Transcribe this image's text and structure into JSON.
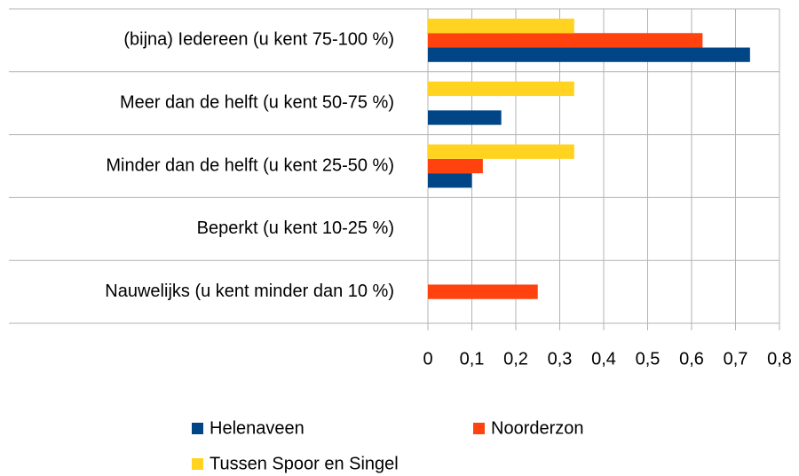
{
  "chart_data": {
    "type": "hbar",
    "categories": [
      "(bijna) Iedereen (u kent 75-100 %)",
      "Meer dan de helft (u kent 50-75 %)",
      "Minder dan de helft (u kent 25-50 %)",
      "Beperkt (u kent 10-25 %)",
      "Nauwelijks (u kent minder dan 10 %)"
    ],
    "series": [
      {
        "name": "Helenaveen",
        "color": "#004586",
        "values": [
          0.733,
          0.167,
          0.1,
          0,
          0
        ]
      },
      {
        "name": "Noorderzon",
        "color": "#ff420e",
        "values": [
          0.625,
          0,
          0.125,
          0,
          0.25
        ]
      },
      {
        "name": "Tussen Spoor en Singel",
        "color": "#ffd320",
        "values": [
          0.333,
          0.333,
          0.333,
          0,
          0
        ]
      }
    ],
    "xlim": [
      0,
      0.8
    ],
    "xticks": [
      0,
      {
        "value": 0.1,
        "label": "0,1"
      },
      {
        "value": 0.2,
        "label": "0,2"
      },
      {
        "value": 0.3,
        "label": "0,3"
      },
      {
        "value": 0.4,
        "label": "0,4"
      },
      {
        "value": 0.5,
        "label": "0,5"
      },
      {
        "value": 0.6,
        "label": "0,6"
      },
      {
        "value": 0.7,
        "label": "0,7"
      },
      {
        "value": 0.8,
        "label": "0,8"
      }
    ],
    "grid": true
  }
}
